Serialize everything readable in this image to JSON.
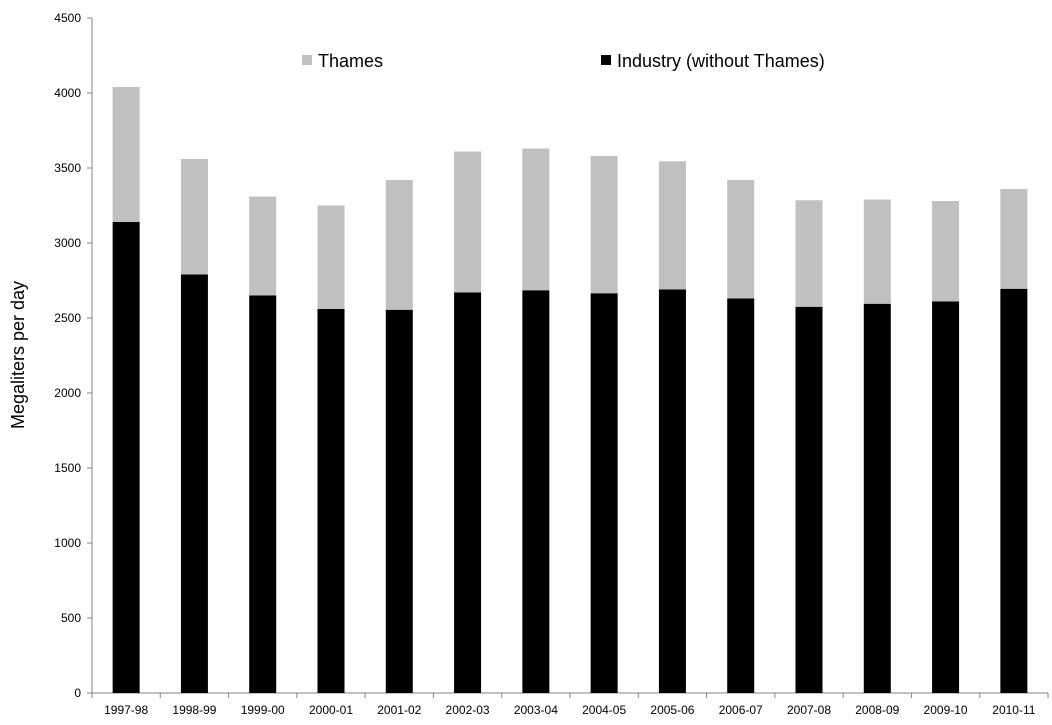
{
  "chart_data": {
    "type": "bar",
    "stacked": true,
    "title": "",
    "xlabel": "",
    "ylabel": "Megaliters per day",
    "ylim": [
      0,
      4500
    ],
    "yticks": [
      0,
      500,
      1000,
      1500,
      2000,
      2500,
      3000,
      3500,
      4000,
      4500
    ],
    "grid": false,
    "legend_position": "top",
    "categories": [
      "1997-98",
      "1998-99",
      "1999-00",
      "2000-01",
      "2001-02",
      "2002-03",
      "2003-04",
      "2004-05",
      "2005-06",
      "2006-07",
      "2007-08",
      "2008-09",
      "2009-10",
      "2010-11"
    ],
    "series": [
      {
        "name": "Industry (without Thames)",
        "color": "#000000",
        "values": [
          3140,
          2790,
          2650,
          2560,
          2555,
          2670,
          2685,
          2665,
          2690,
          2630,
          2575,
          2595,
          2610,
          2695
        ]
      },
      {
        "name": "Thames",
        "color": "#c0c0c0",
        "values": [
          900,
          770,
          660,
          690,
          865,
          940,
          945,
          915,
          855,
          790,
          710,
          695,
          670,
          665
        ]
      }
    ]
  }
}
